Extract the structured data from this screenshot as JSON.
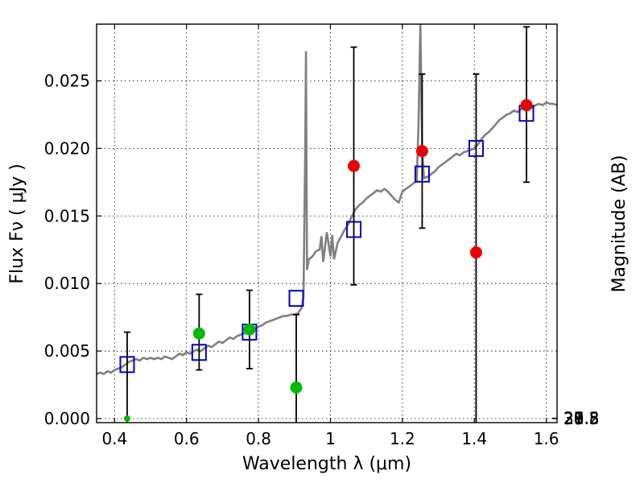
{
  "chart_data": {
    "type": "scatter",
    "xlabel": "Wavelength  λ (μm)",
    "ylabel": "Flux  Fν ( μJy )",
    "y2label": "Magnitude (AB)",
    "xlim": [
      0.35,
      1.63
    ],
    "ylim": [
      -0.0003,
      0.0292
    ],
    "grid": true,
    "x_ticks": [
      0.4,
      0.6,
      0.8,
      1.0,
      1.2,
      1.4,
      1.6
    ],
    "x_tick_labels": [
      "0.4",
      "0.6",
      "0.8",
      "1",
      "1.2",
      "1.4",
      "1.6"
    ],
    "y_ticks": [
      0.0,
      0.005,
      0.01,
      0.015,
      0.02,
      0.025
    ],
    "y_tick_labels": [
      "0.000",
      "0.005",
      "0.010",
      "0.015",
      "0.020",
      "0.025"
    ],
    "mag_ticks": [
      27.8,
      28,
      28.2,
      28.5,
      29,
      29.5,
      30,
      31
    ],
    "mag_tick_labels": [
      "27.8",
      "28",
      "28.2",
      "28.5",
      "29",
      "29.5",
      "30",
      "31"
    ],
    "colors": {
      "model": "#808080",
      "model_points": "#0000cc",
      "detections": "#ee0000",
      "low_sn": "#00bb00",
      "errorbar": "#000000"
    },
    "series": [
      {
        "kind": "line",
        "points": [
          [
            0.35,
            0.0033
          ],
          [
            0.36,
            0.0034
          ],
          [
            0.37,
            0.0033
          ],
          [
            0.38,
            0.0035
          ],
          [
            0.39,
            0.0034
          ],
          [
            0.4,
            0.0036
          ],
          [
            0.41,
            0.0037
          ],
          [
            0.42,
            0.0038
          ],
          [
            0.43,
            0.004
          ],
          [
            0.44,
            0.0042
          ],
          [
            0.45,
            0.0043
          ],
          [
            0.46,
            0.0044
          ],
          [
            0.47,
            0.0043
          ],
          [
            0.48,
            0.0045
          ],
          [
            0.49,
            0.0044
          ],
          [
            0.5,
            0.0045
          ],
          [
            0.51,
            0.0044
          ],
          [
            0.52,
            0.0045
          ],
          [
            0.53,
            0.0044
          ],
          [
            0.54,
            0.0046
          ],
          [
            0.55,
            0.0045
          ],
          [
            0.56,
            0.0044
          ],
          [
            0.57,
            0.0046
          ],
          [
            0.58,
            0.0048
          ],
          [
            0.59,
            0.0047
          ],
          [
            0.6,
            0.0049
          ],
          [
            0.61,
            0.0048
          ],
          [
            0.62,
            0.005
          ],
          [
            0.63,
            0.0051
          ],
          [
            0.64,
            0.005
          ],
          [
            0.65,
            0.0052
          ],
          [
            0.66,
            0.0054
          ],
          [
            0.67,
            0.0053
          ],
          [
            0.68,
            0.0055
          ],
          [
            0.69,
            0.0057
          ],
          [
            0.7,
            0.0056
          ],
          [
            0.71,
            0.0058
          ],
          [
            0.72,
            0.006
          ],
          [
            0.73,
            0.0059
          ],
          [
            0.74,
            0.0061
          ],
          [
            0.75,
            0.0062
          ],
          [
            0.76,
            0.0063
          ],
          [
            0.77,
            0.0064
          ],
          [
            0.78,
            0.0065
          ],
          [
            0.79,
            0.0066
          ],
          [
            0.8,
            0.0068
          ],
          [
            0.81,
            0.0069
          ],
          [
            0.82,
            0.0071
          ],
          [
            0.83,
            0.0072
          ],
          [
            0.84,
            0.0073
          ],
          [
            0.85,
            0.0074
          ],
          [
            0.86,
            0.0075
          ],
          [
            0.87,
            0.0076
          ],
          [
            0.88,
            0.0076
          ],
          [
            0.89,
            0.0077
          ],
          [
            0.9,
            0.0077
          ],
          [
            0.91,
            0.0078
          ],
          [
            0.915,
            0.008
          ],
          [
            0.92,
            0.0082
          ],
          [
            0.925,
            0.009
          ],
          [
            0.93,
            0.02
          ],
          [
            0.932,
            0.0272
          ],
          [
            0.935,
            0.011
          ],
          [
            0.94,
            0.0118
          ],
          [
            0.95,
            0.012
          ],
          [
            0.96,
            0.0124
          ],
          [
            0.97,
            0.0125
          ],
          [
            0.975,
            0.0135
          ],
          [
            0.98,
            0.0116
          ],
          [
            0.99,
            0.0138
          ],
          [
            1.0,
            0.012
          ],
          [
            1.005,
            0.0136
          ],
          [
            1.01,
            0.0118
          ],
          [
            1.02,
            0.013
          ],
          [
            1.03,
            0.0135
          ],
          [
            1.04,
            0.014
          ],
          [
            1.05,
            0.0144
          ],
          [
            1.06,
            0.015
          ],
          [
            1.07,
            0.0155
          ],
          [
            1.08,
            0.0158
          ],
          [
            1.09,
            0.016
          ],
          [
            1.1,
            0.0163
          ],
          [
            1.11,
            0.0165
          ],
          [
            1.12,
            0.0167
          ],
          [
            1.13,
            0.0169
          ],
          [
            1.14,
            0.0168
          ],
          [
            1.15,
            0.017
          ],
          [
            1.16,
            0.0168
          ],
          [
            1.17,
            0.0165
          ],
          [
            1.18,
            0.0162
          ],
          [
            1.19,
            0.016
          ],
          [
            1.2,
            0.0168
          ],
          [
            1.21,
            0.017
          ],
          [
            1.22,
            0.0172
          ],
          [
            1.23,
            0.0174
          ],
          [
            1.24,
            0.0176
          ],
          [
            1.245,
            0.022
          ],
          [
            1.25,
            0.0292
          ],
          [
            1.255,
            0.02
          ],
          [
            1.26,
            0.0178
          ],
          [
            1.27,
            0.0179
          ],
          [
            1.28,
            0.0181
          ],
          [
            1.29,
            0.0183
          ],
          [
            1.3,
            0.0186
          ],
          [
            1.31,
            0.0188
          ],
          [
            1.32,
            0.019
          ],
          [
            1.33,
            0.0192
          ],
          [
            1.34,
            0.0194
          ],
          [
            1.35,
            0.0196
          ],
          [
            1.36,
            0.0195
          ],
          [
            1.37,
            0.0197
          ],
          [
            1.38,
            0.0198
          ],
          [
            1.39,
            0.0199
          ],
          [
            1.4,
            0.02
          ],
          [
            1.41,
            0.0203
          ],
          [
            1.42,
            0.0207
          ],
          [
            1.43,
            0.021
          ],
          [
            1.44,
            0.0212
          ],
          [
            1.45,
            0.0215
          ],
          [
            1.46,
            0.0218
          ],
          [
            1.47,
            0.0221
          ],
          [
            1.48,
            0.0223
          ],
          [
            1.49,
            0.0225
          ],
          [
            1.5,
            0.0226
          ],
          [
            1.51,
            0.0228
          ],
          [
            1.52,
            0.0227
          ],
          [
            1.53,
            0.0229
          ],
          [
            1.54,
            0.023
          ],
          [
            1.55,
            0.0231
          ],
          [
            1.56,
            0.023
          ],
          [
            1.57,
            0.0232
          ],
          [
            1.58,
            0.0233
          ],
          [
            1.59,
            0.0232
          ],
          [
            1.6,
            0.0234
          ],
          [
            1.61,
            0.0233
          ],
          [
            1.62,
            0.0233
          ],
          [
            1.63,
            0.0232
          ]
        ]
      },
      {
        "kind": "open-squares",
        "x": [
          0.435,
          0.635,
          0.775,
          0.905,
          1.065,
          1.255,
          1.405,
          1.545
        ],
        "y": [
          0.004,
          0.0049,
          0.0064,
          0.0089,
          0.014,
          0.0181,
          0.02,
          0.0226
        ]
      },
      {
        "kind": "filled-circles",
        "x": [
          1.065,
          1.255,
          1.405,
          1.545
        ],
        "y": [
          0.0187,
          0.0198,
          0.0123,
          0.0232
        ]
      },
      {
        "kind": "filled-circles-low-sn",
        "x": [
          0.435,
          0.635,
          0.775,
          0.905
        ],
        "y": [
          0.0,
          0.0063,
          0.0066,
          0.0023
        ]
      },
      {
        "kind": "errorbars",
        "x": [
          0.435,
          0.635,
          0.775,
          0.905,
          1.065,
          1.255,
          1.405,
          1.545
        ],
        "low": [
          -0.0003,
          0.0036,
          0.0037,
          -0.0003,
          0.0099,
          0.0141,
          -0.0003,
          0.0175
        ],
        "high": [
          0.0064,
          0.0092,
          0.0095,
          0.0077,
          0.0275,
          0.0255,
          0.0255,
          0.029
        ]
      }
    ]
  }
}
